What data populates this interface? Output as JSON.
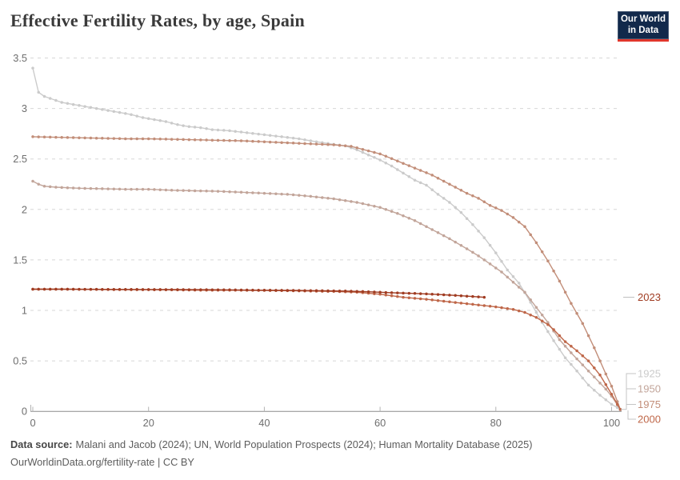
{
  "branding": {
    "logo_line1": "Our World",
    "logo_line2": "in Data",
    "logo_bg": "#12294b",
    "logo_bar": "#e0362c"
  },
  "chart_data": {
    "type": "line",
    "title": "Effective Fertility Rates, by age, Spain",
    "xlabel": "",
    "ylabel": "",
    "xlim": [
      0,
      101.5
    ],
    "ylim": [
      0,
      3.5
    ],
    "x_ticks": [
      0,
      20,
      40,
      60,
      80,
      100
    ],
    "y_ticks": [
      0,
      0.5,
      1,
      1.5,
      2,
      2.5,
      3,
      3.5
    ],
    "grid": "horizontal-dashed",
    "legend_position": "right-end-of-lines",
    "series": [
      {
        "name": "1925",
        "color": "#cbcbcb",
        "points": [
          [
            0,
            3.4
          ],
          [
            1,
            3.16
          ],
          [
            2,
            3.12
          ],
          [
            3,
            3.1
          ],
          [
            4,
            3.08
          ],
          [
            5,
            3.06
          ],
          [
            7,
            3.04
          ],
          [
            9,
            3.02
          ],
          [
            11,
            3.0
          ],
          [
            13,
            2.98
          ],
          [
            15,
            2.96
          ],
          [
            17,
            2.94
          ],
          [
            19,
            2.91
          ],
          [
            21,
            2.89
          ],
          [
            23,
            2.87
          ],
          [
            25,
            2.84
          ],
          [
            27,
            2.82
          ],
          [
            29,
            2.81
          ],
          [
            31,
            2.79
          ],
          [
            34,
            2.78
          ],
          [
            37,
            2.76
          ],
          [
            40,
            2.74
          ],
          [
            43,
            2.72
          ],
          [
            46,
            2.7
          ],
          [
            49,
            2.67
          ],
          [
            52,
            2.645
          ],
          [
            54,
            2.63
          ],
          [
            56,
            2.59
          ],
          [
            58,
            2.54
          ],
          [
            60,
            2.49
          ],
          [
            62,
            2.43
          ],
          [
            64,
            2.36
          ],
          [
            66,
            2.29
          ],
          [
            68,
            2.24
          ],
          [
            70,
            2.15
          ],
          [
            72,
            2.07
          ],
          [
            74,
            1.97
          ],
          [
            76,
            1.85
          ],
          [
            78,
            1.72
          ],
          [
            80,
            1.57
          ],
          [
            82,
            1.4
          ],
          [
            84,
            1.27
          ],
          [
            86,
            1.08
          ],
          [
            88,
            0.88
          ],
          [
            90,
            0.7
          ],
          [
            92,
            0.53
          ],
          [
            94,
            0.4
          ],
          [
            96,
            0.26
          ],
          [
            98,
            0.16
          ],
          [
            100,
            0.07
          ],
          [
            101.5,
            0.02
          ]
        ]
      },
      {
        "name": "1950",
        "color": "#c2a59a",
        "points": [
          [
            0,
            2.28
          ],
          [
            1,
            2.25
          ],
          [
            2,
            2.23
          ],
          [
            4,
            2.22
          ],
          [
            8,
            2.21
          ],
          [
            12,
            2.205
          ],
          [
            16,
            2.2
          ],
          [
            20,
            2.2
          ],
          [
            24,
            2.19
          ],
          [
            28,
            2.185
          ],
          [
            32,
            2.18
          ],
          [
            36,
            2.17
          ],
          [
            40,
            2.16
          ],
          [
            44,
            2.15
          ],
          [
            48,
            2.13
          ],
          [
            52,
            2.105
          ],
          [
            56,
            2.07
          ],
          [
            60,
            2.02
          ],
          [
            63,
            1.96
          ],
          [
            66,
            1.89
          ],
          [
            69,
            1.8
          ],
          [
            72,
            1.71
          ],
          [
            75,
            1.61
          ],
          [
            77,
            1.54
          ],
          [
            79,
            1.46
          ],
          [
            81,
            1.38
          ],
          [
            83,
            1.28
          ],
          [
            85,
            1.18
          ],
          [
            87,
            1.03
          ],
          [
            89,
            0.88
          ],
          [
            91,
            0.71
          ],
          [
            93,
            0.58
          ],
          [
            95,
            0.46
          ],
          [
            97,
            0.34
          ],
          [
            99,
            0.22
          ],
          [
            100,
            0.15
          ],
          [
            101.5,
            0.02
          ]
        ]
      },
      {
        "name": "1975",
        "color": "#c28e79",
        "points": [
          [
            0,
            2.72
          ],
          [
            4,
            2.715
          ],
          [
            8,
            2.71
          ],
          [
            12,
            2.705
          ],
          [
            16,
            2.7
          ],
          [
            20,
            2.7
          ],
          [
            24,
            2.695
          ],
          [
            28,
            2.69
          ],
          [
            32,
            2.685
          ],
          [
            36,
            2.68
          ],
          [
            40,
            2.67
          ],
          [
            44,
            2.66
          ],
          [
            48,
            2.65
          ],
          [
            52,
            2.64
          ],
          [
            55,
            2.625
          ],
          [
            58,
            2.58
          ],
          [
            60,
            2.55
          ],
          [
            63,
            2.48
          ],
          [
            66,
            2.41
          ],
          [
            69,
            2.34
          ],
          [
            72,
            2.25
          ],
          [
            75,
            2.16
          ],
          [
            77,
            2.11
          ],
          [
            79,
            2.04
          ],
          [
            81,
            1.99
          ],
          [
            83,
            1.92
          ],
          [
            85,
            1.83
          ],
          [
            87,
            1.67
          ],
          [
            89,
            1.49
          ],
          [
            91,
            1.29
          ],
          [
            93,
            1.07
          ],
          [
            95,
            0.87
          ],
          [
            97,
            0.63
          ],
          [
            99,
            0.37
          ],
          [
            100,
            0.25
          ],
          [
            101.5,
            0.02
          ]
        ]
      },
      {
        "name": "2000",
        "color": "#bf6749",
        "points": [
          [
            0,
            1.21
          ],
          [
            5,
            1.21
          ],
          [
            10,
            1.208
          ],
          [
            15,
            1.206
          ],
          [
            20,
            1.205
          ],
          [
            25,
            1.203
          ],
          [
            30,
            1.2
          ],
          [
            35,
            1.2
          ],
          [
            40,
            1.198
          ],
          [
            46,
            1.193
          ],
          [
            52,
            1.188
          ],
          [
            56,
            1.18
          ],
          [
            60,
            1.16
          ],
          [
            64,
            1.13
          ],
          [
            68,
            1.11
          ],
          [
            72,
            1.085
          ],
          [
            76,
            1.06
          ],
          [
            80,
            1.035
          ],
          [
            83,
            1.01
          ],
          [
            85,
            0.98
          ],
          [
            87,
            0.93
          ],
          [
            89,
            0.86
          ],
          [
            90,
            0.81
          ],
          [
            92,
            0.69
          ],
          [
            94,
            0.6
          ],
          [
            96,
            0.5
          ],
          [
            98,
            0.36
          ],
          [
            100,
            0.17
          ],
          [
            101.5,
            0.02
          ]
        ]
      },
      {
        "name": "2023",
        "color": "#a03c22",
        "points": [
          [
            0,
            1.21
          ],
          [
            5,
            1.21
          ],
          [
            10,
            1.209
          ],
          [
            15,
            1.208
          ],
          [
            20,
            1.207
          ],
          [
            25,
            1.206
          ],
          [
            30,
            1.205
          ],
          [
            35,
            1.203
          ],
          [
            40,
            1.2
          ],
          [
            45,
            1.198
          ],
          [
            50,
            1.195
          ],
          [
            54,
            1.192
          ],
          [
            58,
            1.185
          ],
          [
            62,
            1.175
          ],
          [
            66,
            1.168
          ],
          [
            70,
            1.158
          ],
          [
            74,
            1.145
          ],
          [
            78,
            1.13
          ]
        ]
      }
    ]
  },
  "footer": {
    "datasource_label": "Data source:",
    "datasource_text": "Malani and Jacob (2024); UN, World Population Prospects (2024); Human Mortality Database (2025)",
    "license_line": "OurWorldinData.org/fertility-rate | CC BY"
  }
}
